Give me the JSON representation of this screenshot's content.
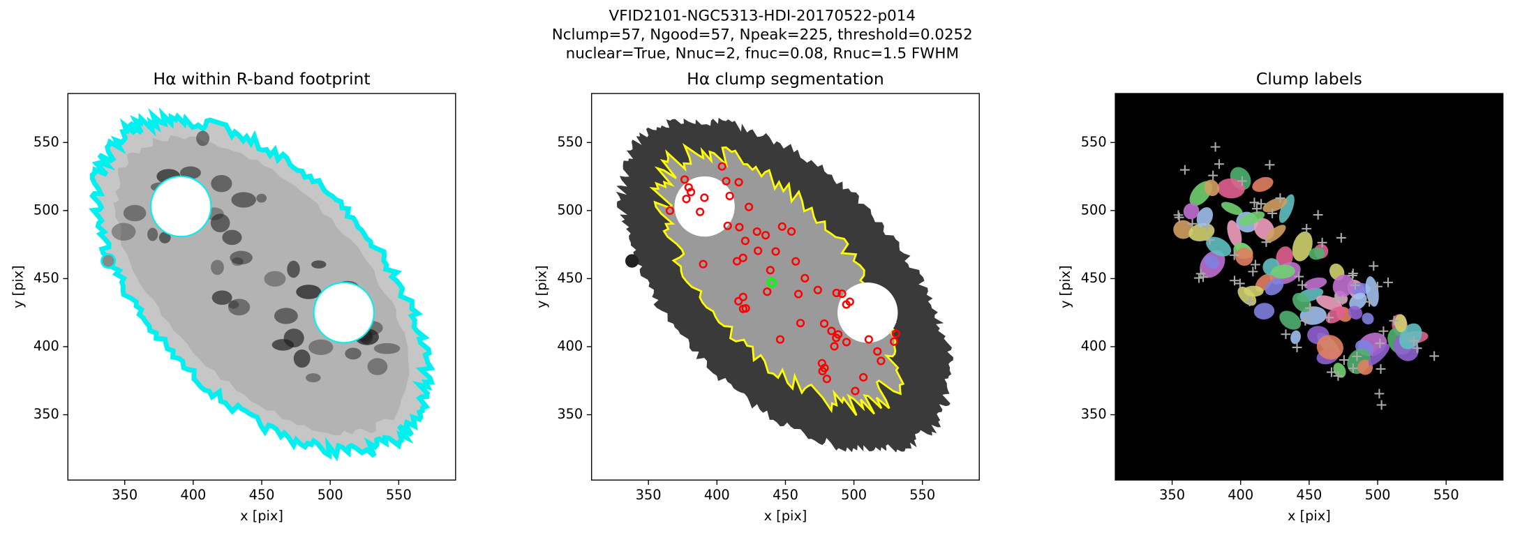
{
  "figure_title": [
    "VFID2101-NGC5313-HDI-20170522-p014",
    "Nclump=57, Ngood=57, Npeak=225, threshold=0.0252",
    "nuclear=True, Nnuc=2, fnuc=0.08, Rnuc=1.5 FWHM"
  ],
  "chart_data": [
    {
      "type": "image",
      "title": "Hα within R-band footprint",
      "xlabel": "x [pix]",
      "ylabel": "y [pix]",
      "xlim": [
        308.5,
        591.5
      ],
      "ylim": [
        302,
        586
      ],
      "xticks": [
        350,
        400,
        450,
        500,
        550
      ],
      "yticks": [
        350,
        400,
        450,
        500,
        550
      ]
    },
    {
      "type": "image",
      "title": "Hα clump segmentation",
      "xlabel": "x [pix]",
      "ylabel": "y [pix]",
      "xlim": [
        308.5,
        591.5
      ],
      "ylim": [
        302,
        586
      ],
      "xticks": [
        350,
        400,
        450,
        500,
        550
      ],
      "yticks": [
        350,
        400,
        450,
        500,
        550
      ]
    },
    {
      "type": "image",
      "title": "Clump labels",
      "xlabel": "x [pix]",
      "ylabel": "y [pix]",
      "xlim": [
        308.5,
        591.5
      ],
      "ylim": [
        302,
        586
      ],
      "xticks": [
        350,
        400,
        450,
        500,
        550
      ],
      "yticks": [
        350,
        400,
        450,
        500,
        550
      ]
    }
  ]
}
